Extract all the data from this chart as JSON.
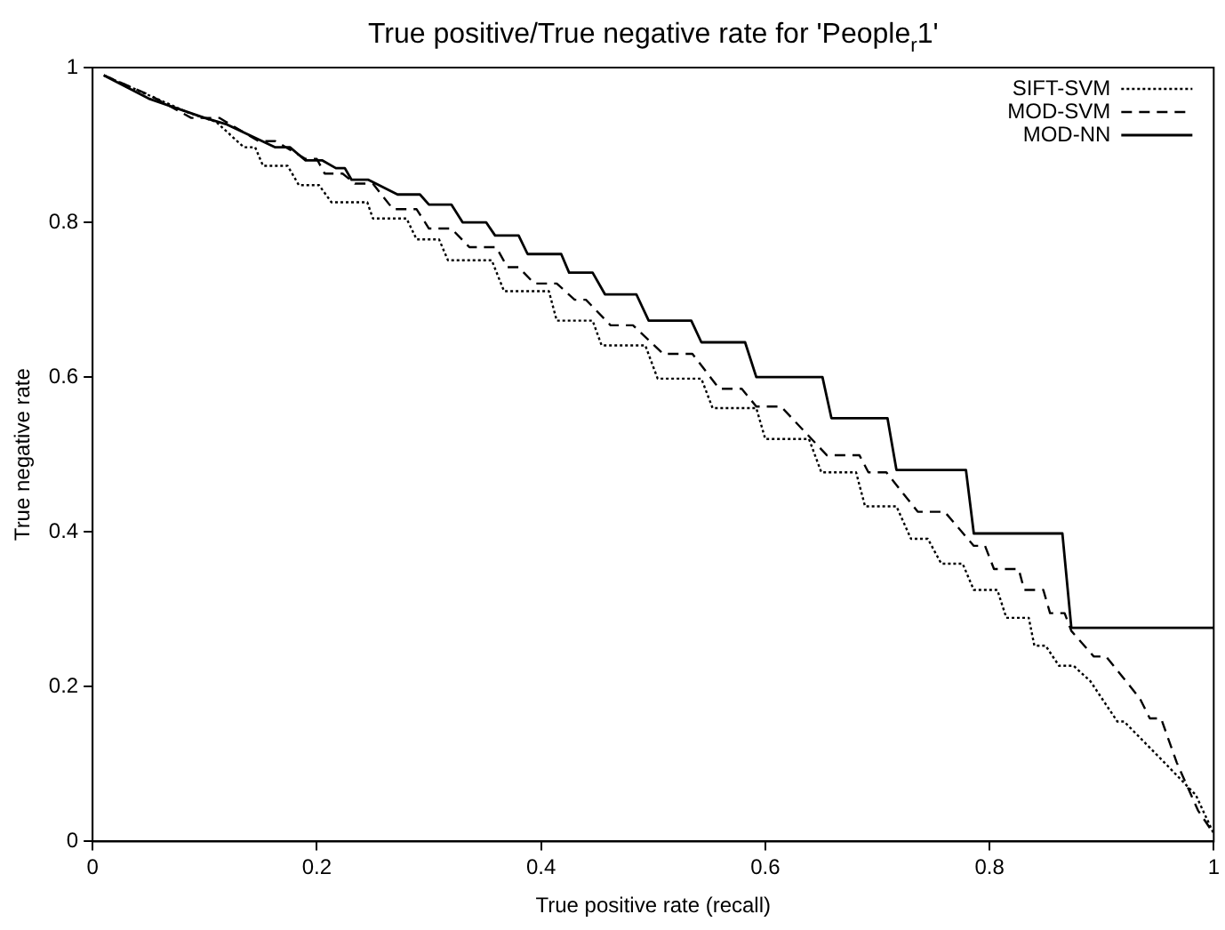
{
  "chart_data": {
    "type": "line",
    "title": "True positive/True negative rate for 'People$_{r}$1'",
    "xlabel": "True positive rate (recall)",
    "ylabel": "True negative rate",
    "xlim": [
      0,
      1
    ],
    "ylim": [
      0,
      1
    ],
    "xticks": [
      0,
      0.2,
      0.4,
      0.6,
      0.8,
      1
    ],
    "yticks": [
      0,
      0.2,
      0.4,
      0.6,
      0.8,
      1
    ],
    "grid": false,
    "legend": "top right",
    "marker": "none",
    "series": [
      {
        "name": "SIFT-SVM",
        "color": "#000000",
        "line_style": "dotted",
        "x": [
          0.01,
          0.085,
          0.11,
          0.135,
          0.145,
          0.152,
          0.174,
          0.184,
          0.202,
          0.213,
          0.245,
          0.25,
          0.28,
          0.289,
          0.309,
          0.317,
          0.356,
          0.367,
          0.407,
          0.414,
          0.446,
          0.454,
          0.493,
          0.504,
          0.543,
          0.553,
          0.592,
          0.6,
          0.639,
          0.65,
          0.681,
          0.689,
          0.717,
          0.73,
          0.745,
          0.757,
          0.776,
          0.786,
          0.807,
          0.815,
          0.835,
          0.84,
          0.85,
          0.862,
          0.875,
          0.89,
          0.914,
          0.92,
          0.956,
          0.984,
          1.0
        ],
        "values": [
          0.99,
          0.942,
          0.93,
          0.897,
          0.897,
          0.873,
          0.873,
          0.848,
          0.848,
          0.826,
          0.826,
          0.805,
          0.805,
          0.778,
          0.778,
          0.751,
          0.751,
          0.711,
          0.711,
          0.673,
          0.673,
          0.641,
          0.641,
          0.598,
          0.598,
          0.56,
          0.56,
          0.52,
          0.52,
          0.477,
          0.477,
          0.433,
          0.433,
          0.391,
          0.391,
          0.359,
          0.359,
          0.325,
          0.325,
          0.289,
          0.289,
          0.253,
          0.253,
          0.227,
          0.227,
          0.207,
          0.155,
          0.155,
          0.102,
          0.06,
          0.01
        ]
      },
      {
        "name": "MOD-SVM",
        "color": "#000000",
        "line_style": "dashed",
        "x": [
          0.01,
          0.05,
          0.088,
          0.113,
          0.148,
          0.163,
          0.19,
          0.2,
          0.207,
          0.223,
          0.234,
          0.25,
          0.268,
          0.289,
          0.3,
          0.32,
          0.336,
          0.36,
          0.37,
          0.38,
          0.394,
          0.414,
          0.43,
          0.44,
          0.462,
          0.482,
          0.509,
          0.535,
          0.559,
          0.579,
          0.592,
          0.614,
          0.655,
          0.684,
          0.692,
          0.708,
          0.736,
          0.76,
          0.786,
          0.796,
          0.804,
          0.826,
          0.831,
          0.848,
          0.854,
          0.867,
          0.873,
          0.893,
          0.904,
          0.934,
          0.943,
          0.953,
          0.967,
          0.986,
          1.0
        ],
        "values": [
          0.99,
          0.965,
          0.935,
          0.935,
          0.905,
          0.905,
          0.882,
          0.882,
          0.863,
          0.863,
          0.85,
          0.85,
          0.817,
          0.817,
          0.792,
          0.792,
          0.768,
          0.768,
          0.742,
          0.742,
          0.721,
          0.721,
          0.7,
          0.7,
          0.667,
          0.667,
          0.63,
          0.63,
          0.585,
          0.585,
          0.562,
          0.562,
          0.499,
          0.499,
          0.477,
          0.477,
          0.426,
          0.426,
          0.382,
          0.382,
          0.352,
          0.352,
          0.325,
          0.325,
          0.295,
          0.295,
          0.272,
          0.239,
          0.239,
          0.185,
          0.159,
          0.159,
          0.102,
          0.04,
          0.01
        ]
      },
      {
        "name": "MOD-NN",
        "color": "#000000",
        "line_style": "solid",
        "x": [
          0.01,
          0.05,
          0.1,
          0.119,
          0.163,
          0.176,
          0.19,
          0.205,
          0.217,
          0.225,
          0.231,
          0.246,
          0.272,
          0.292,
          0.3,
          0.32,
          0.33,
          0.351,
          0.359,
          0.38,
          0.388,
          0.418,
          0.425,
          0.446,
          0.457,
          0.485,
          0.496,
          0.534,
          0.543,
          0.582,
          0.592,
          0.651,
          0.659,
          0.709,
          0.717,
          0.779,
          0.786,
          0.865,
          0.873,
          1.0
        ],
        "values": [
          0.99,
          0.96,
          0.935,
          0.927,
          0.897,
          0.897,
          0.88,
          0.88,
          0.87,
          0.87,
          0.855,
          0.855,
          0.836,
          0.836,
          0.823,
          0.823,
          0.8,
          0.8,
          0.783,
          0.783,
          0.759,
          0.759,
          0.735,
          0.735,
          0.707,
          0.707,
          0.673,
          0.673,
          0.645,
          0.645,
          0.6,
          0.6,
          0.547,
          0.547,
          0.48,
          0.48,
          0.398,
          0.398,
          0.276,
          0.276
        ]
      }
    ]
  }
}
